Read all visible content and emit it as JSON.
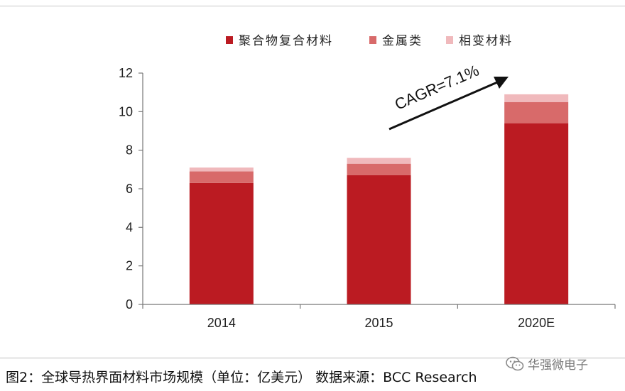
{
  "chart_data": {
    "type": "bar",
    "stacked": true,
    "categories": [
      "2014",
      "2015",
      "2020E"
    ],
    "series": [
      {
        "name": "聚合物复合材料",
        "color": "#bb1b22",
        "values": [
          6.3,
          6.7,
          9.4
        ]
      },
      {
        "name": "金属类",
        "color": "#d86a6a",
        "values": [
          0.6,
          0.6,
          1.1
        ]
      },
      {
        "name": "相变材料",
        "color": "#f0b9bc",
        "values": [
          0.2,
          0.3,
          0.4
        ]
      }
    ],
    "ylim": [
      0,
      12
    ],
    "yticks": [
      0,
      2,
      4,
      6,
      8,
      10,
      12
    ],
    "legend_position": "top",
    "annotation": {
      "text": "CAGR=7.1%",
      "arrow": "rising"
    }
  },
  "caption": "图2：全球导热界面材料市场规模（单位：亿美元） 数据来源：BCC Research",
  "watermark": {
    "text": "华强微电子",
    "icon": "wechat-icon"
  }
}
